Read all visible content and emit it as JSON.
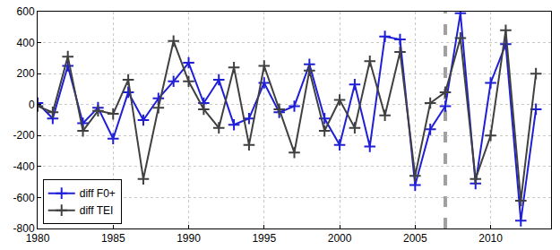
{
  "chart_data": {
    "type": "line",
    "x": [
      1980,
      1981,
      1982,
      1983,
      1984,
      1985,
      1986,
      1987,
      1988,
      1989,
      1990,
      1991,
      1992,
      1993,
      1994,
      1995,
      1996,
      1997,
      1998,
      1999,
      2000,
      2001,
      2002,
      2003,
      2004,
      2005,
      2006,
      2007,
      2008,
      2009,
      2010,
      2011,
      2012,
      2013
    ],
    "series": [
      {
        "name": "diff F0+",
        "color": "#1f1fd6",
        "marker": "cross",
        "values": [
          10,
          -90,
          250,
          -120,
          -20,
          -220,
          80,
          -100,
          40,
          150,
          270,
          10,
          160,
          -130,
          -90,
          140,
          -50,
          -10,
          260,
          -90,
          -260,
          130,
          -270,
          440,
          420,
          -520,
          -160,
          -10,
          590,
          -510,
          140,
          390,
          -750,
          -30
        ]
      },
      {
        "name": "diff TEI",
        "color": "#404040",
        "marker": "cross",
        "values": [
          -10,
          -50,
          310,
          -170,
          -40,
          -60,
          160,
          -480,
          -20,
          410,
          150,
          -30,
          -150,
          240,
          -260,
          250,
          -30,
          -310,
          220,
          -170,
          30,
          -150,
          280,
          -70,
          340,
          -460,
          10,
          80,
          430,
          -480,
          -200,
          480,
          -620,
          200
        ]
      }
    ],
    "vline_x": 2007,
    "xlim": [
      1980,
      2014
    ],
    "xticks": [
      1980,
      1985,
      1990,
      1995,
      2000,
      2005,
      2010
    ],
    "ylim": [
      -800,
      600
    ],
    "yticks": [
      -800,
      -600,
      -400,
      -200,
      0,
      200,
      400,
      600
    ],
    "grid": true,
    "legend": "lower left"
  }
}
